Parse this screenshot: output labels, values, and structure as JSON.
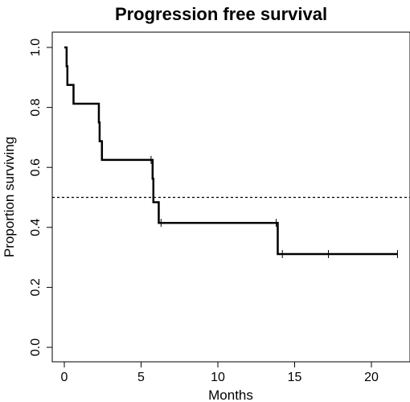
{
  "chart_data": {
    "type": "line",
    "title": "Progression free survival",
    "xlabel": "Months",
    "ylabel": "Proportion surviving",
    "xlim": [
      0,
      22
    ],
    "ylim": [
      0,
      1.0
    ],
    "x_ticks": [
      0,
      5,
      10,
      15,
      20
    ],
    "x_tick_labels": [
      "0",
      "5",
      "10",
      "15",
      "20"
    ],
    "y_ticks": [
      0,
      0.2,
      0.4,
      0.6,
      0.8,
      1.0
    ],
    "y_tick_labels": [
      "0.0",
      "0.2",
      "0.4",
      "0.6",
      "0.8",
      "1.0"
    ],
    "grid": false,
    "reference_line": {
      "y": 0.5,
      "style": "dashed"
    },
    "series": [
      {
        "steps": [
          {
            "x": 0.0,
            "y": 1.0
          },
          {
            "x": 0.15,
            "y": 0.9375
          },
          {
            "x": 0.2,
            "y": 0.875
          },
          {
            "x": 0.6,
            "y": 0.8125
          },
          {
            "x": 2.25,
            "y": 0.75
          },
          {
            "x": 2.3,
            "y": 0.6875
          },
          {
            "x": 2.45,
            "y": 0.625
          },
          {
            "x": 5.75,
            "y": 0.5625
          },
          {
            "x": 5.8,
            "y": 0.484
          },
          {
            "x": 6.15,
            "y": 0.415
          },
          {
            "x": 13.9,
            "y": 0.311
          },
          {
            "x": 21.7,
            "y": 0.311
          }
        ],
        "censored": [
          {
            "x": 5.65,
            "y": 0.625
          },
          {
            "x": 6.3,
            "y": 0.415
          },
          {
            "x": 13.8,
            "y": 0.415
          },
          {
            "x": 14.2,
            "y": 0.311
          },
          {
            "x": 17.2,
            "y": 0.311
          },
          {
            "x": 21.7,
            "y": 0.311
          }
        ]
      }
    ]
  }
}
